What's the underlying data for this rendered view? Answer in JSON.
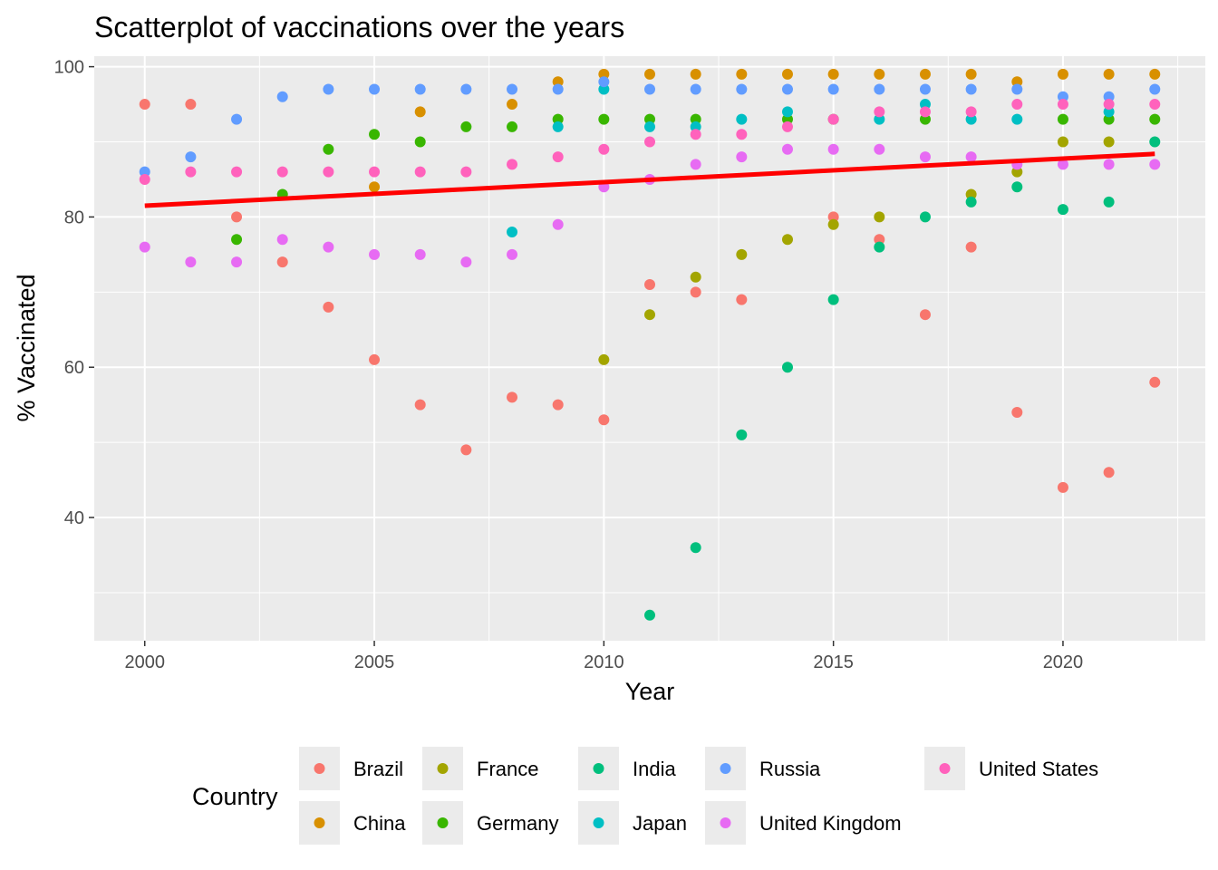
{
  "chart_data": {
    "type": "scatter",
    "title": "Scatterplot of vaccinations over the years",
    "xlabel": "Year",
    "ylabel": "% Vaccinated",
    "xlim": [
      1998.9,
      2023.1
    ],
    "ylim": [
      23.6,
      101.4
    ],
    "x_ticks": [
      2000,
      2005,
      2010,
      2015,
      2020
    ],
    "y_ticks": [
      40,
      60,
      80,
      100
    ],
    "grid": true,
    "legend_title": "Country",
    "legend_position": "bottom",
    "trend_line": {
      "color": "#ff0000",
      "x": [
        2000,
        2022
      ],
      "y": [
        81.5,
        88.4
      ]
    },
    "series": [
      {
        "name": "Brazil",
        "color": "#F8766D",
        "points": [
          [
            2000,
            95
          ],
          [
            2001,
            95
          ],
          [
            2002,
            80
          ],
          [
            2003,
            74
          ],
          [
            2004,
            68
          ],
          [
            2005,
            61
          ],
          [
            2006,
            55
          ],
          [
            2007,
            49
          ],
          [
            2008,
            56
          ],
          [
            2009,
            55
          ],
          [
            2010,
            53
          ],
          [
            2011,
            71
          ],
          [
            2012,
            70
          ],
          [
            2013,
            69
          ],
          [
            2014,
            null
          ],
          [
            2015,
            80
          ],
          [
            2016,
            77
          ],
          [
            2017,
            67
          ],
          [
            2018,
            76
          ],
          [
            2019,
            54
          ],
          [
            2020,
            44
          ],
          [
            2021,
            46
          ],
          [
            2022,
            58
          ]
        ]
      },
      {
        "name": "China",
        "color": "#D89000",
        "points": [
          [
            2005,
            84
          ],
          [
            2006,
            94
          ],
          [
            2008,
            95
          ],
          [
            2009,
            98
          ],
          [
            2010,
            99
          ],
          [
            2011,
            99
          ],
          [
            2012,
            99
          ],
          [
            2013,
            99
          ],
          [
            2014,
            99
          ],
          [
            2015,
            99
          ],
          [
            2016,
            99
          ],
          [
            2017,
            99
          ],
          [
            2018,
            99
          ],
          [
            2019,
            98
          ],
          [
            2020,
            99
          ],
          [
            2021,
            99
          ],
          [
            2022,
            99
          ]
        ]
      },
      {
        "name": "France",
        "color": "#A3A500",
        "points": [
          [
            2010,
            61
          ],
          [
            2011,
            67
          ],
          [
            2012,
            72
          ],
          [
            2013,
            75
          ],
          [
            2014,
            77
          ],
          [
            2015,
            79
          ],
          [
            2016,
            80
          ],
          [
            2018,
            83
          ],
          [
            2019,
            86
          ],
          [
            2020,
            90
          ],
          [
            2021,
            90
          ],
          [
            2022,
            null
          ]
        ]
      },
      {
        "name": "Germany",
        "color": "#39B600",
        "points": [
          [
            2002,
            77
          ],
          [
            2003,
            83
          ],
          [
            2004,
            89
          ],
          [
            2005,
            91
          ],
          [
            2006,
            90
          ],
          [
            2007,
            92
          ],
          [
            2008,
            92
          ],
          [
            2009,
            93
          ],
          [
            2010,
            93
          ],
          [
            2011,
            93
          ],
          [
            2012,
            93
          ],
          [
            2014,
            93
          ],
          [
            2015,
            93
          ],
          [
            2017,
            93
          ],
          [
            2020,
            93
          ],
          [
            2021,
            93
          ],
          [
            2022,
            93
          ]
        ]
      },
      {
        "name": "India",
        "color": "#00BF7D",
        "points": [
          [
            2011,
            27
          ],
          [
            2012,
            36
          ],
          [
            2013,
            51
          ],
          [
            2014,
            60
          ],
          [
            2015,
            69
          ],
          [
            2016,
            76
          ],
          [
            2017,
            80
          ],
          [
            2018,
            82
          ],
          [
            2019,
            84
          ],
          [
            2020,
            81
          ],
          [
            2021,
            82
          ],
          [
            2022,
            90
          ]
        ]
      },
      {
        "name": "Japan",
        "color": "#00BFC4",
        "points": [
          [
            2008,
            78
          ],
          [
            2009,
            92
          ],
          [
            2010,
            97
          ],
          [
            2011,
            92
          ],
          [
            2012,
            92
          ],
          [
            2013,
            93
          ],
          [
            2014,
            94
          ],
          [
            2016,
            93
          ],
          [
            2017,
            95
          ],
          [
            2018,
            93
          ],
          [
            2019,
            93
          ],
          [
            2021,
            94
          ]
        ]
      },
      {
        "name": "Russia",
        "color": "#619CFF",
        "points": [
          [
            2000,
            86
          ],
          [
            2001,
            88
          ],
          [
            2002,
            93
          ],
          [
            2003,
            96
          ],
          [
            2004,
            97
          ],
          [
            2005,
            97
          ],
          [
            2006,
            97
          ],
          [
            2007,
            97
          ],
          [
            2008,
            97
          ],
          [
            2009,
            97
          ],
          [
            2010,
            98
          ],
          [
            2011,
            97
          ],
          [
            2012,
            97
          ],
          [
            2013,
            97
          ],
          [
            2014,
            97
          ],
          [
            2015,
            97
          ],
          [
            2016,
            97
          ],
          [
            2017,
            97
          ],
          [
            2018,
            97
          ],
          [
            2019,
            97
          ],
          [
            2020,
            96
          ],
          [
            2021,
            96
          ],
          [
            2022,
            97
          ]
        ]
      },
      {
        "name": "United Kingdom",
        "color": "#E76BF3",
        "points": [
          [
            2000,
            76
          ],
          [
            2001,
            74
          ],
          [
            2002,
            74
          ],
          [
            2003,
            77
          ],
          [
            2004,
            76
          ],
          [
            2005,
            75
          ],
          [
            2006,
            75
          ],
          [
            2007,
            74
          ],
          [
            2008,
            75
          ],
          [
            2009,
            79
          ],
          [
            2010,
            84
          ],
          [
            2011,
            85
          ],
          [
            2012,
            87
          ],
          [
            2013,
            88
          ],
          [
            2014,
            89
          ],
          [
            2015,
            89
          ],
          [
            2016,
            89
          ],
          [
            2017,
            88
          ],
          [
            2018,
            88
          ],
          [
            2019,
            87
          ],
          [
            2020,
            87
          ],
          [
            2021,
            87
          ],
          [
            2022,
            87
          ]
        ]
      },
      {
        "name": "United States",
        "color": "#FF62BC",
        "points": [
          [
            2000,
            85
          ],
          [
            2001,
            86
          ],
          [
            2002,
            86
          ],
          [
            2003,
            86
          ],
          [
            2004,
            86
          ],
          [
            2005,
            86
          ],
          [
            2006,
            86
          ],
          [
            2007,
            86
          ],
          [
            2008,
            87
          ],
          [
            2009,
            88
          ],
          [
            2010,
            89
          ],
          [
            2011,
            90
          ],
          [
            2012,
            91
          ],
          [
            2013,
            91
          ],
          [
            2014,
            92
          ],
          [
            2015,
            93
          ],
          [
            2016,
            94
          ],
          [
            2017,
            94
          ],
          [
            2018,
            94
          ],
          [
            2019,
            95
          ],
          [
            2020,
            95
          ],
          [
            2021,
            95
          ],
          [
            2022,
            95
          ]
        ]
      }
    ],
    "legend_rows": [
      [
        "Brazil",
        "France",
        "India",
        "Russia",
        "United States"
      ],
      [
        "China",
        "Germany",
        "Japan",
        "United Kingdom"
      ]
    ]
  }
}
